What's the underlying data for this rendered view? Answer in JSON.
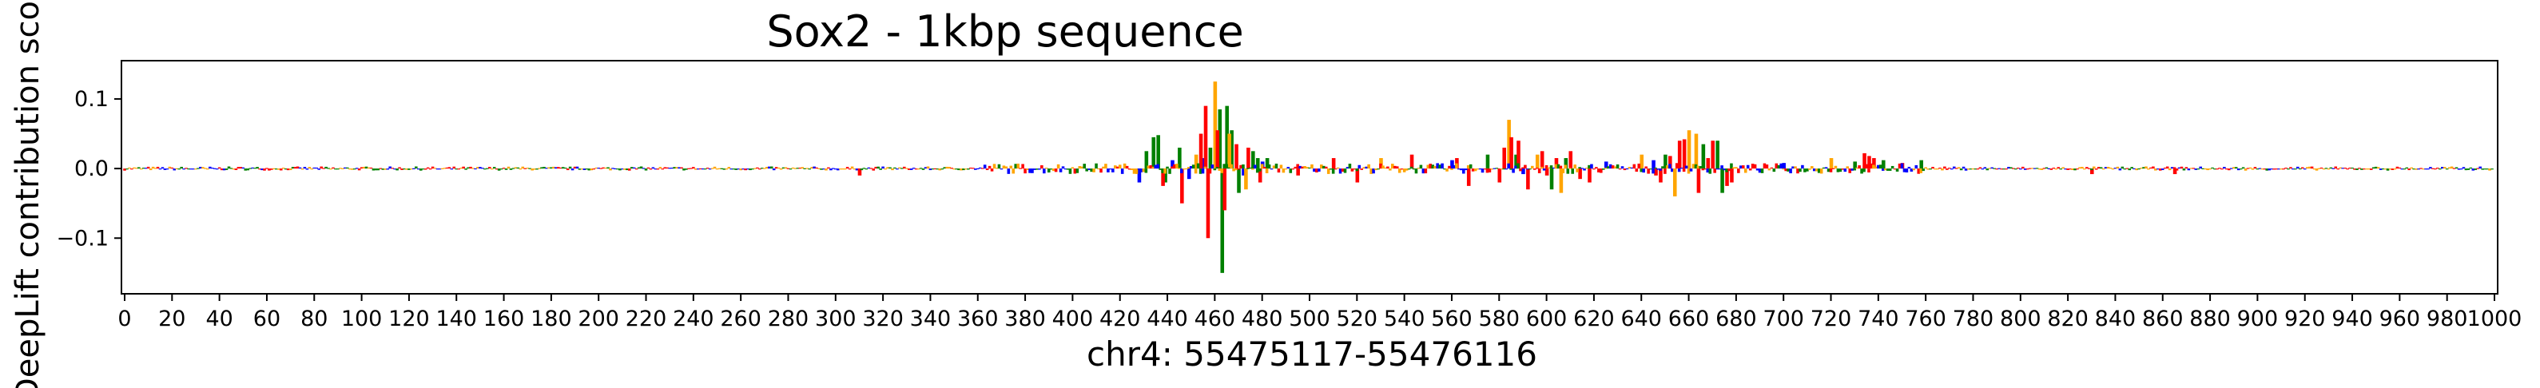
{
  "chart_data": {
    "type": "bar",
    "title": "Sox2 - 1kbp sequence",
    "xlabel": "chr4: 55475117-55476116",
    "ylabel": "DeepLift contribution scores",
    "xlim": [
      0,
      1000
    ],
    "ylim": [
      -0.18,
      0.155
    ],
    "x_ticks": [
      0,
      20,
      40,
      60,
      80,
      100,
      120,
      140,
      160,
      180,
      200,
      220,
      240,
      260,
      280,
      300,
      320,
      340,
      360,
      380,
      400,
      420,
      440,
      460,
      480,
      500,
      520,
      540,
      560,
      580,
      600,
      620,
      640,
      660,
      680,
      700,
      720,
      740,
      760,
      780,
      800,
      820,
      840,
      860,
      880,
      900,
      920,
      940,
      960,
      980,
      1000
    ],
    "x_tick_labels": [
      "0",
      "20",
      "40",
      "60",
      "80",
      "100",
      "120",
      "140",
      "160",
      "180",
      "200",
      "220",
      "240",
      "260",
      "280",
      "300",
      "320",
      "340",
      "360",
      "380",
      "400",
      "420",
      "440",
      "460",
      "480",
      "500",
      "520",
      "540",
      "560",
      "580",
      "600",
      "620",
      "640",
      "660",
      "680",
      "700",
      "720",
      "740",
      "760",
      "780",
      "800",
      "820",
      "840",
      "860",
      "880",
      "900",
      "920",
      "940",
      "960",
      "980",
      "1000"
    ],
    "y_ticks": [
      -0.1,
      0.0,
      0.1
    ],
    "y_tick_labels": [
      "−0.1",
      "0.0",
      "0.1"
    ],
    "grid": false,
    "legend": "none",
    "colors": {
      "A": "#008000",
      "C": "#0000ff",
      "G": "#ffa500",
      "T": "#ff0000"
    },
    "series": [
      {
        "base": "A",
        "color": "#008000",
        "x": [
          431,
          434,
          436,
          439,
          445,
          458,
          462,
          463,
          465,
          467,
          470,
          476,
          478,
          482,
          575,
          587,
          602,
          608,
          650,
          666,
          672,
          674,
          730,
          742,
          758
        ],
        "values": [
          0.025,
          0.045,
          0.048,
          -0.02,
          0.03,
          0.03,
          0.085,
          -0.15,
          0.09,
          0.055,
          -0.035,
          0.025,
          0.015,
          0.015,
          0.02,
          0.02,
          -0.03,
          0.015,
          0.02,
          0.035,
          0.04,
          -0.035,
          0.01,
          0.012,
          0.012
        ]
      },
      {
        "base": "C",
        "color": "#0000ff",
        "x": [
          428,
          442,
          449,
          455,
          472,
          480,
          560,
          590,
          625,
          645,
          700
        ],
        "values": [
          -0.02,
          0.012,
          -0.015,
          0.015,
          -0.01,
          0.01,
          0.012,
          -0.008,
          0.01,
          0.012,
          0.008
        ]
      },
      {
        "base": "G",
        "color": "#ffa500",
        "x": [
          452,
          460,
          466,
          473,
          530,
          584,
          596,
          606,
          640,
          654,
          660,
          663,
          720
        ],
        "values": [
          0.02,
          0.125,
          0.05,
          -0.03,
          0.015,
          0.07,
          0.02,
          -0.035,
          0.02,
          -0.04,
          0.055,
          0.05,
          0.015
        ]
      },
      {
        "base": "T",
        "color": "#ff0000",
        "x": [
          310,
          438,
          446,
          454,
          456,
          457,
          461,
          464,
          469,
          474,
          479,
          495,
          510,
          520,
          543,
          562,
          567,
          580,
          582,
          585,
          588,
          592,
          598,
          600,
          604,
          610,
          614,
          618,
          646,
          648,
          652,
          656,
          658,
          664,
          668,
          670,
          676,
          678,
          734,
          736,
          738,
          750,
          830,
          865
        ],
        "values": [
          -0.01,
          -0.025,
          -0.05,
          0.05,
          0.09,
          -0.1,
          0.055,
          -0.06,
          0.035,
          0.03,
          -0.02,
          -0.01,
          0.015,
          -0.02,
          0.02,
          0.015,
          -0.025,
          -0.02,
          0.03,
          0.045,
          0.04,
          -0.03,
          0.025,
          -0.01,
          0.015,
          0.025,
          -0.015,
          -0.02,
          -0.01,
          -0.02,
          0.018,
          0.04,
          0.042,
          -0.035,
          0.015,
          0.04,
          -0.025,
          -0.02,
          0.022,
          0.018,
          0.015,
          0.008,
          -0.008,
          -0.008
        ]
      }
    ]
  }
}
